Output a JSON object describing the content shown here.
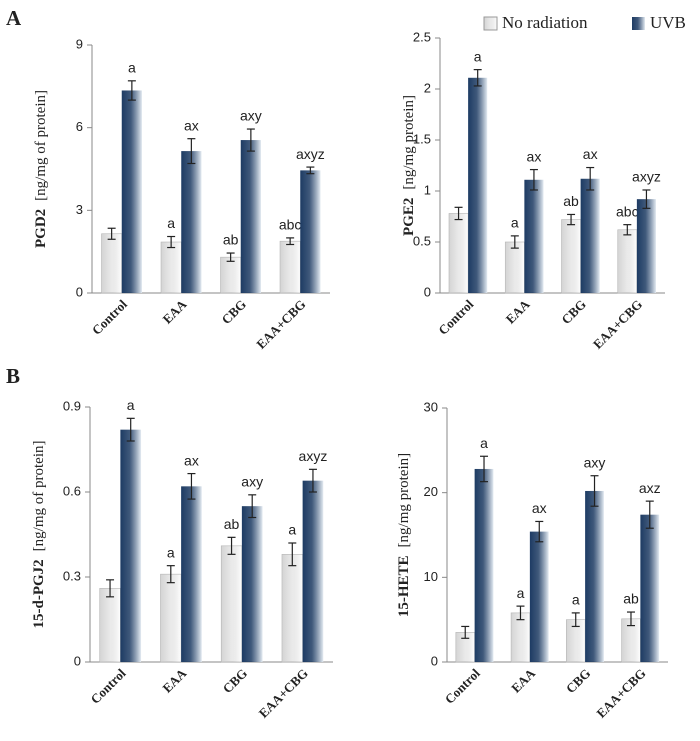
{
  "panels": [
    "A",
    "B"
  ],
  "chart_data": [
    {
      "type": "bar",
      "ylabel": "PGD2",
      "ylabel_units": "[ng/mg of protein]",
      "categories": [
        "Control",
        "EAA",
        "CBG",
        "EAA+CBG"
      ],
      "ylim": [
        0,
        9
      ],
      "yticks": [
        0,
        3,
        6,
        9
      ],
      "series": [
        {
          "name": "No radiation",
          "color": "#d4d4d4",
          "values": [
            2.15,
            1.85,
            1.3,
            1.88
          ],
          "errors": [
            0.2,
            0.2,
            0.15,
            0.12
          ],
          "letters": [
            null,
            "a",
            "ab",
            "abc"
          ]
        },
        {
          "name": "UVB",
          "color": "#1d3b63",
          "values": [
            7.35,
            5.15,
            5.55,
            4.45
          ],
          "errors": [
            0.35,
            0.45,
            0.4,
            0.12
          ],
          "letters": [
            "a",
            "ax",
            "axy",
            "axyz"
          ]
        }
      ]
    },
    {
      "type": "bar",
      "ylabel": "PGE2",
      "ylabel_units": "[ng/mg protein]",
      "categories": [
        "Control",
        "EAA",
        "CBG",
        "EAA+CBG"
      ],
      "ylim": [
        0,
        2.5
      ],
      "yticks": [
        0,
        0.5,
        1,
        1.5,
        2,
        2.5
      ],
      "series": [
        {
          "color": "#d4d4d4",
          "values": [
            0.78,
            0.5,
            0.72,
            0.62
          ],
          "errors": [
            0.06,
            0.06,
            0.05,
            0.05
          ],
          "letters": [
            null,
            "a",
            "ab",
            "abc"
          ]
        },
        {
          "color": "#1d3b63",
          "values": [
            2.11,
            1.11,
            1.12,
            0.92
          ],
          "errors": [
            0.08,
            0.1,
            0.11,
            0.09
          ],
          "letters": [
            "a",
            "ax",
            "ax",
            "axyz"
          ]
        }
      ]
    },
    {
      "type": "bar",
      "ylabel": "15-d-PGJ2",
      "ylabel_units": "[ng/mg of protein]",
      "categories": [
        "Control",
        "EAA",
        "CBG",
        "EAA+CBG"
      ],
      "ylim": [
        0,
        0.9
      ],
      "yticks": [
        0,
        0.3,
        0.6,
        0.9
      ],
      "series": [
        {
          "color": "#d4d4d4",
          "values": [
            0.26,
            0.31,
            0.41,
            0.38
          ],
          "errors": [
            0.03,
            0.03,
            0.03,
            0.04
          ],
          "letters": [
            null,
            "a",
            "ab",
            "a"
          ]
        },
        {
          "color": "#1d3b63",
          "values": [
            0.82,
            0.62,
            0.55,
            0.64
          ],
          "errors": [
            0.04,
            0.045,
            0.04,
            0.04
          ],
          "letters": [
            "a",
            "ax",
            "axy",
            "axyz"
          ]
        }
      ]
    },
    {
      "type": "bar",
      "ylabel": "15-HETE",
      "ylabel_units": "[ng/mg protein]",
      "categories": [
        "Control",
        "EAA",
        "CBG",
        "EAA+CBG"
      ],
      "ylim": [
        0,
        30
      ],
      "yticks": [
        0,
        10,
        20,
        30
      ],
      "series": [
        {
          "color": "#d4d4d4",
          "values": [
            3.5,
            5.8,
            5.0,
            5.1
          ],
          "errors": [
            0.7,
            0.8,
            0.8,
            0.8
          ],
          "letters": [
            null,
            "a",
            "a",
            "ab"
          ]
        },
        {
          "color": "#1d3b63",
          "values": [
            22.8,
            15.4,
            20.2,
            17.4
          ],
          "errors": [
            1.5,
            1.2,
            1.8,
            1.6
          ],
          "letters": [
            "a",
            "ax",
            "axy",
            "axz"
          ]
        }
      ]
    }
  ]
}
